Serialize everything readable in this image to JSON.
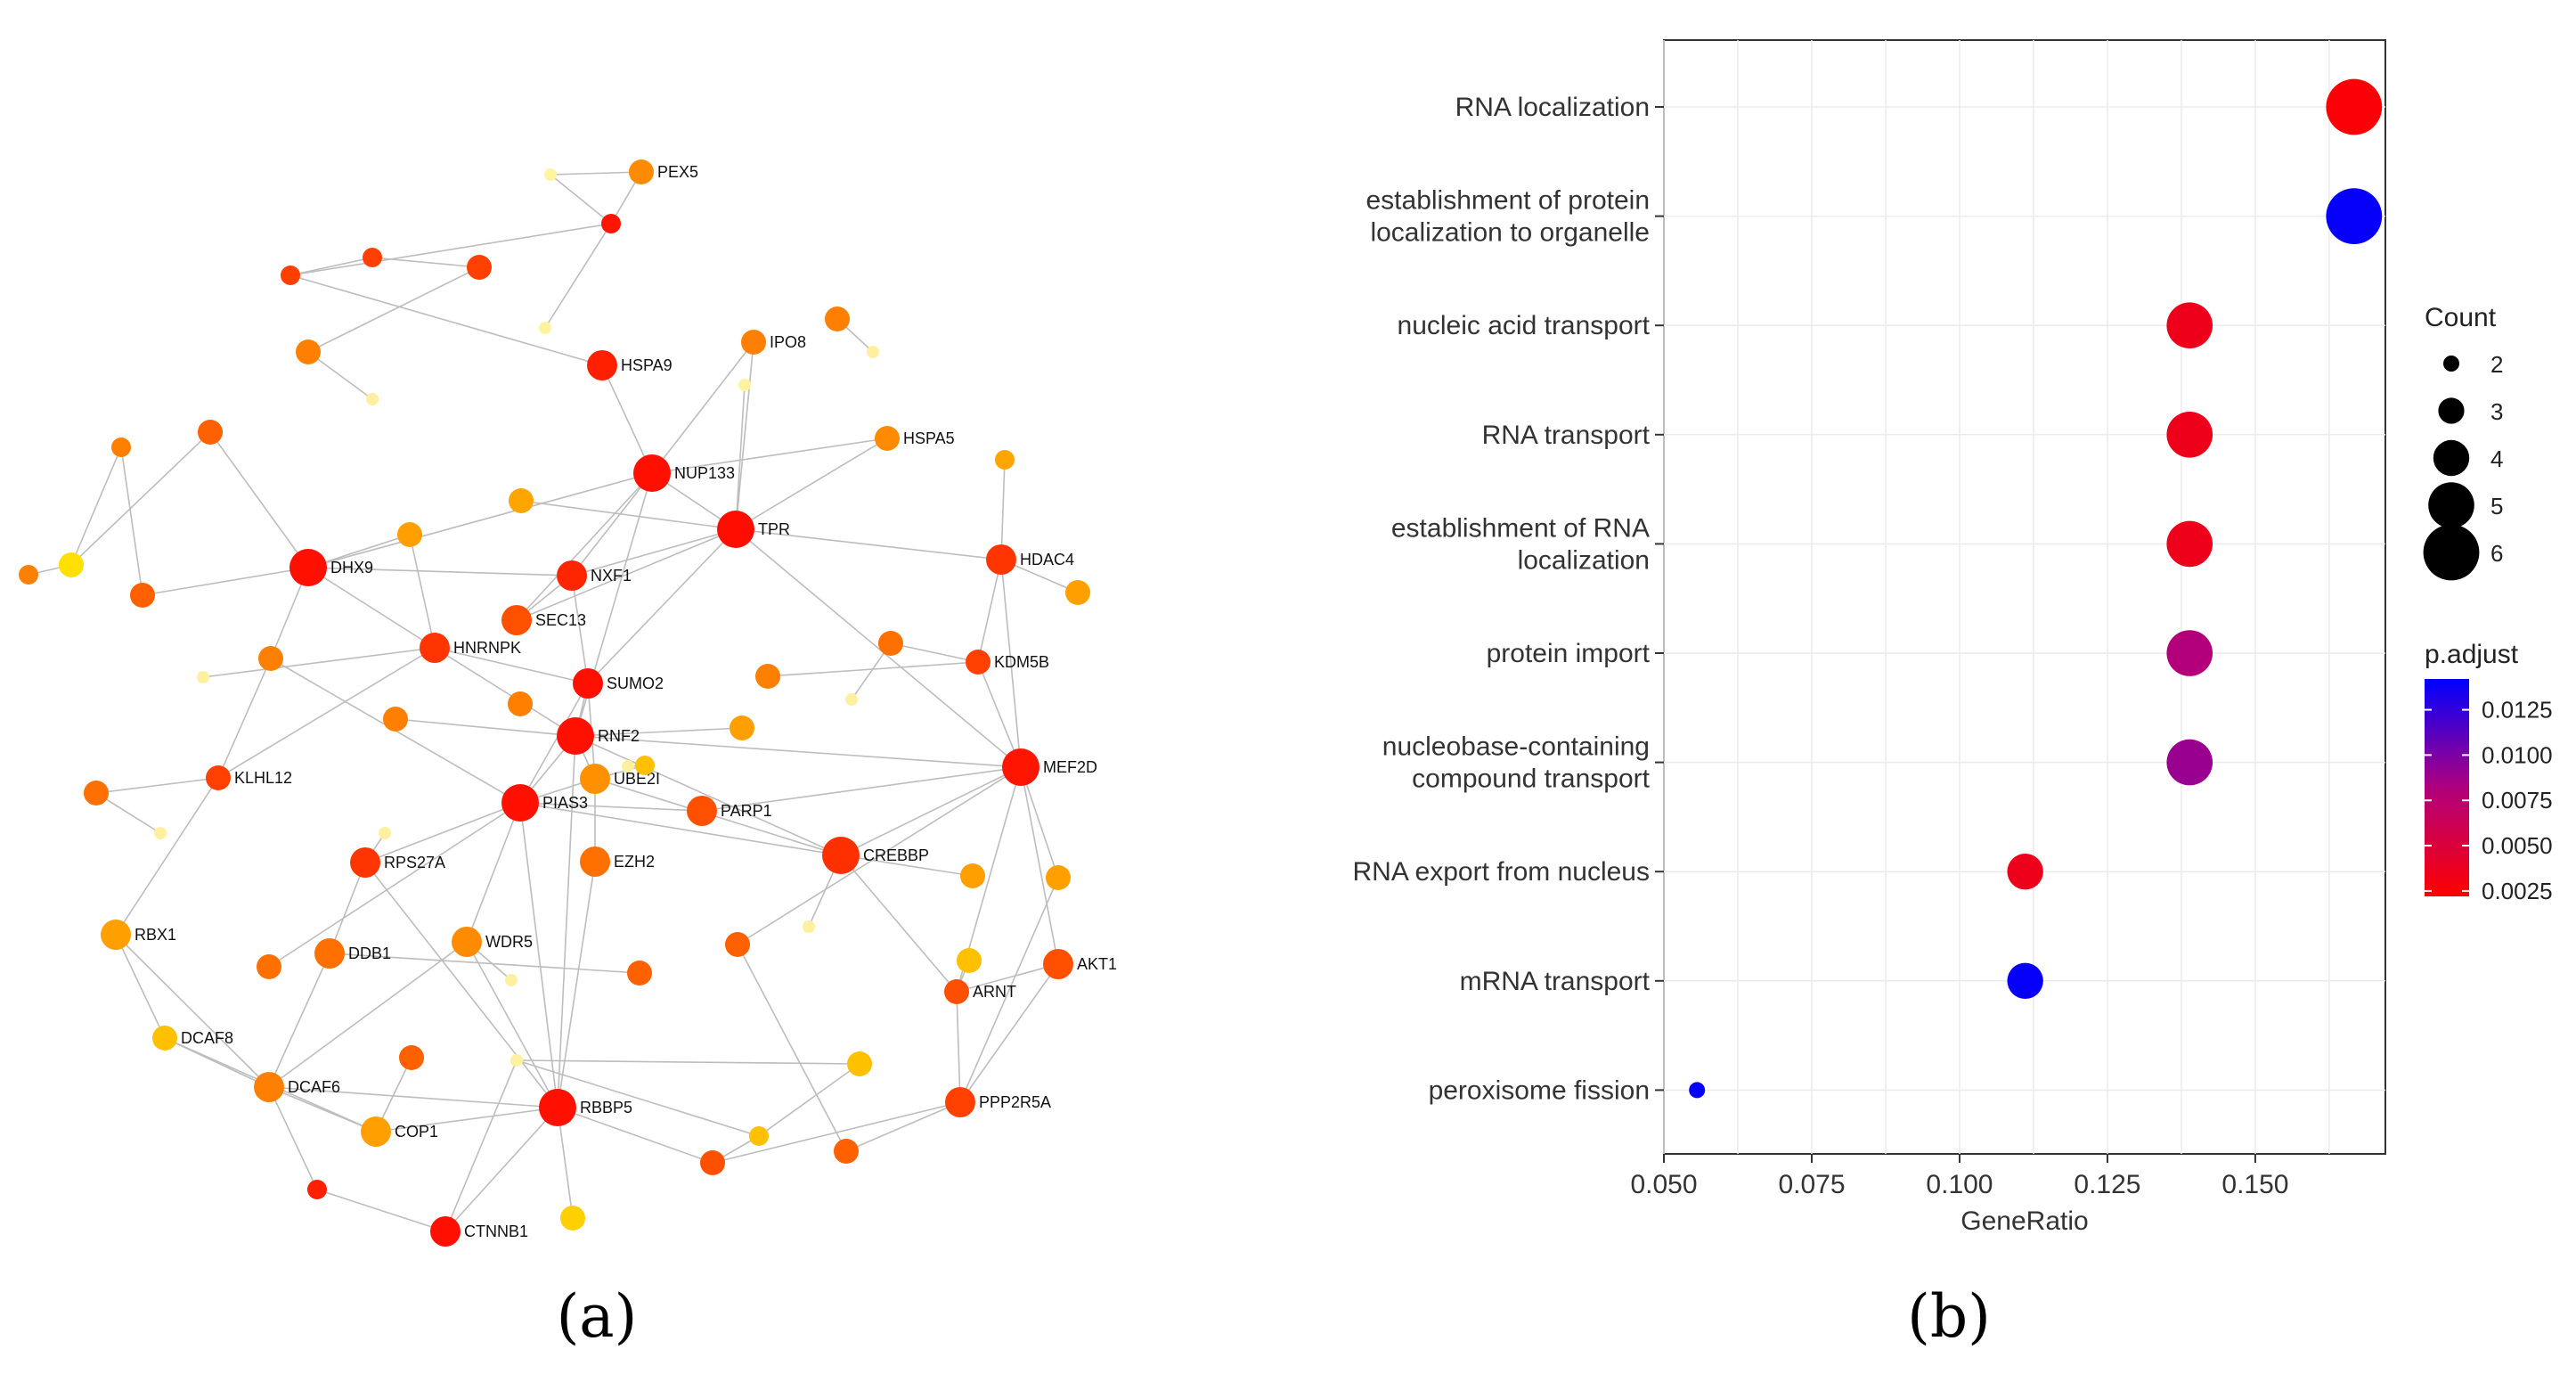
{
  "panel_labels": {
    "a": "(a)",
    "b": "(b)"
  },
  "network": {
    "nodes": [
      {
        "id": "PEX5",
        "label": "PEX5",
        "color": "#FF8C00",
        "size": "m"
      },
      {
        "id": "n_top1",
        "label": "",
        "color": "#FFF5A0",
        "size": "xs"
      },
      {
        "id": "n_top2",
        "label": "",
        "color": "#FF4000",
        "size": "s"
      },
      {
        "id": "n_top3",
        "label": "",
        "color": "#FF4000",
        "size": "m"
      },
      {
        "id": "n_top4",
        "label": "",
        "color": "#FF1500",
        "size": "s"
      },
      {
        "id": "n_top5",
        "label": "",
        "color": "#FF4000",
        "size": "s"
      },
      {
        "id": "n_top6",
        "label": "",
        "color": "#FFF3A0",
        "size": "xs"
      },
      {
        "id": "n_top7",
        "label": "",
        "color": "#FF8000",
        "size": "m"
      },
      {
        "id": "n_top8",
        "label": "",
        "color": "#FFF0A0",
        "size": "xs"
      },
      {
        "id": "HSPA9",
        "label": "HSPA9",
        "color": "#FF2000",
        "size": "l"
      },
      {
        "id": "IPO8",
        "label": "IPO8",
        "color": "#FF8000",
        "size": "m"
      },
      {
        "id": "n_ipo_a",
        "label": "",
        "color": "#FF8000",
        "size": "m"
      },
      {
        "id": "n_ipo_b",
        "label": "",
        "color": "#FFF3A0",
        "size": "xs"
      },
      {
        "id": "n_ipo_c",
        "label": "",
        "color": "#FFF0A0",
        "size": "xs"
      },
      {
        "id": "HSPA5",
        "label": "HSPA5",
        "color": "#FF8C00",
        "size": "m"
      },
      {
        "id": "n_hs5",
        "label": "",
        "color": "#FFA500",
        "size": "s"
      },
      {
        "id": "NUP133",
        "label": "NUP133",
        "color": "#FF1000",
        "size": "xl"
      },
      {
        "id": "TPR",
        "label": "TPR",
        "color": "#FF0D00",
        "size": "xl"
      },
      {
        "id": "HDAC4",
        "label": "HDAC4",
        "color": "#FF3500",
        "size": "l"
      },
      {
        "id": "n_hd",
        "label": "",
        "color": "#FFA000",
        "size": "m"
      },
      {
        "id": "DHX9",
        "label": "DHX9",
        "color": "#FF1000",
        "size": "xl"
      },
      {
        "id": "n_l1",
        "label": "",
        "color": "#FF8000",
        "size": "s"
      },
      {
        "id": "n_l2",
        "label": "",
        "color": "#FF6000",
        "size": "m"
      },
      {
        "id": "n_l3",
        "label": "",
        "color": "#FFE000",
        "size": "m"
      },
      {
        "id": "n_l4",
        "label": "",
        "color": "#FF8000",
        "size": "s"
      },
      {
        "id": "n_l5",
        "label": "",
        "color": "#FF6000",
        "size": "m"
      },
      {
        "id": "n_m1",
        "label": "",
        "color": "#FFA000",
        "size": "m"
      },
      {
        "id": "n_m2",
        "label": "",
        "color": "#FFA500",
        "size": "m"
      },
      {
        "id": "NXF1",
        "label": "NXF1",
        "color": "#FF2500",
        "size": "l"
      },
      {
        "id": "SEC13",
        "label": "SEC13",
        "color": "#FF5000",
        "size": "l"
      },
      {
        "id": "HNRNPK",
        "label": "HNRNPK",
        "color": "#FF3500",
        "size": "l"
      },
      {
        "id": "n_l6",
        "label": "",
        "color": "#FF8000",
        "size": "m"
      },
      {
        "id": "n_l7",
        "label": "",
        "color": "#FFF0A0",
        "size": "xs"
      },
      {
        "id": "SUMO2",
        "label": "SUMO2",
        "color": "#FF1000",
        "size": "l"
      },
      {
        "id": "n_s1",
        "label": "",
        "color": "#FF8000",
        "size": "m"
      },
      {
        "id": "n_s2",
        "label": "",
        "color": "#FF7000",
        "size": "m"
      },
      {
        "id": "n_s3",
        "label": "",
        "color": "#FF8000",
        "size": "m"
      },
      {
        "id": "n_s4",
        "label": "",
        "color": "#FFF0A0",
        "size": "xs"
      },
      {
        "id": "KDM5B",
        "label": "KDM5B",
        "color": "#FF4000",
        "size": "m"
      },
      {
        "id": "RNF2",
        "label": "RNF2",
        "color": "#FF1000",
        "size": "xl"
      },
      {
        "id": "n_r1",
        "label": "",
        "color": "#FF8000",
        "size": "m"
      },
      {
        "id": "n_r2",
        "label": "",
        "color": "#FFA000",
        "size": "m"
      },
      {
        "id": "UBE2I",
        "label": "UBE2I",
        "color": "#FF9000",
        "size": "l"
      },
      {
        "id": "n_ub",
        "label": "",
        "color": "#FFC000",
        "size": "s"
      },
      {
        "id": "n_ub2",
        "label": "",
        "color": "#FFF0A0",
        "size": "xs"
      },
      {
        "id": "MEF2D",
        "label": "MEF2D",
        "color": "#FF1500",
        "size": "xl"
      },
      {
        "id": "KLHL12",
        "label": "KLHL12",
        "color": "#FF4000",
        "size": "m"
      },
      {
        "id": "n_k1",
        "label": "",
        "color": "#FF7000",
        "size": "m"
      },
      {
        "id": "n_k2",
        "label": "",
        "color": "#FFF0A0",
        "size": "xs"
      },
      {
        "id": "PIAS3",
        "label": "PIAS3",
        "color": "#FF1000",
        "size": "xl"
      },
      {
        "id": "PARP1",
        "label": "PARP1",
        "color": "#FF5000",
        "size": "l"
      },
      {
        "id": "n_p1",
        "label": "",
        "color": "#FFF0A0",
        "size": "xs"
      },
      {
        "id": "RPS27A",
        "label": "RPS27A",
        "color": "#FF3500",
        "size": "l"
      },
      {
        "id": "EZH2",
        "label": "EZH2",
        "color": "#FF7000",
        "size": "l"
      },
      {
        "id": "CREBBP",
        "label": "CREBBP",
        "color": "#FF3000",
        "size": "xl"
      },
      {
        "id": "n_c1",
        "label": "",
        "color": "#FFA000",
        "size": "m"
      },
      {
        "id": "n_c2",
        "label": "",
        "color": "#FFA000",
        "size": "m"
      },
      {
        "id": "n_c3",
        "label": "",
        "color": "#FFC000",
        "size": "m"
      },
      {
        "id": "RBX1",
        "label": "RBX1",
        "color": "#FFA000",
        "size": "l"
      },
      {
        "id": "WDR5",
        "label": "WDR5",
        "color": "#FF8C00",
        "size": "l"
      },
      {
        "id": "DDB1",
        "label": "DDB1",
        "color": "#FF7000",
        "size": "l"
      },
      {
        "id": "n_d1",
        "label": "",
        "color": "#FF7000",
        "size": "m"
      },
      {
        "id": "n_d2",
        "label": "",
        "color": "#FFF0A0",
        "size": "xs"
      },
      {
        "id": "n_d3",
        "label": "",
        "color": "#FF6000",
        "size": "m"
      },
      {
        "id": "n_d4",
        "label": "",
        "color": "#FF6000",
        "size": "m"
      },
      {
        "id": "ARNT",
        "label": "ARNT",
        "color": "#FF5000",
        "size": "m"
      },
      {
        "id": "AKT1",
        "label": "AKT1",
        "color": "#FF5000",
        "size": "l"
      },
      {
        "id": "DCAF8",
        "label": "DCAF8",
        "color": "#FFC000",
        "size": "m"
      },
      {
        "id": "DCAF6",
        "label": "DCAF6",
        "color": "#FF8000",
        "size": "l"
      },
      {
        "id": "n_w1",
        "label": "",
        "color": "#FF6000",
        "size": "m"
      },
      {
        "id": "n_w2",
        "label": "",
        "color": "#FFF0A0",
        "size": "xs"
      },
      {
        "id": "n_w3",
        "label": "",
        "color": "#FFF0A0",
        "size": "xs"
      },
      {
        "id": "n_w4",
        "label": "",
        "color": "#FFC000",
        "size": "m"
      },
      {
        "id": "RBBP5",
        "label": "RBBP5",
        "color": "#FF1000",
        "size": "xl"
      },
      {
        "id": "COP1",
        "label": "COP1",
        "color": "#FFA000",
        "size": "l"
      },
      {
        "id": "PPP2R5A",
        "label": "PPP2R5A",
        "color": "#FF4000",
        "size": "l"
      },
      {
        "id": "n_b1",
        "label": "",
        "color": "#FF2000",
        "size": "s"
      },
      {
        "id": "n_b2",
        "label": "",
        "color": "#FFC000",
        "size": "s"
      },
      {
        "id": "n_b3",
        "label": "",
        "color": "#FF5000",
        "size": "m"
      },
      {
        "id": "n_b4",
        "label": "",
        "color": "#FF6000",
        "size": "m"
      },
      {
        "id": "CTNNB1",
        "label": "CTNNB1",
        "color": "#FF1000",
        "size": "l"
      },
      {
        "id": "n_b5",
        "label": "",
        "color": "#FFD000",
        "size": "m"
      }
    ],
    "edges": [
      [
        "n_top1",
        "PEX5"
      ],
      [
        "PEX5",
        "n_top4"
      ],
      [
        "n_top4",
        "n_top1"
      ],
      [
        "n_top4",
        "n_top5"
      ],
      [
        "n_top5",
        "n_top2"
      ],
      [
        "n_top2",
        "n_top3"
      ],
      [
        "n_top4",
        "n_top6"
      ],
      [
        "n_top3",
        "n_top7"
      ],
      [
        "n_top7",
        "n_top8"
      ],
      [
        "n_top5",
        "HSPA9"
      ],
      [
        "HSPA9",
        "NUP133"
      ],
      [
        "NUP133",
        "IPO8"
      ],
      [
        "IPO8",
        "TPR"
      ],
      [
        "n_ipo_a",
        "n_ipo_c"
      ],
      [
        "n_ipo_b",
        "TPR"
      ],
      [
        "NUP133",
        "HSPA5"
      ],
      [
        "HSPA5",
        "TPR"
      ],
      [
        "n_hs5",
        "HDAC4"
      ],
      [
        "TPR",
        "HDAC4"
      ],
      [
        "HDAC4",
        "n_hd"
      ],
      [
        "NUP133",
        "TPR"
      ],
      [
        "NUP133",
        "NXF1"
      ],
      [
        "NUP133",
        "SEC13"
      ],
      [
        "NUP133",
        "RNF2"
      ],
      [
        "NUP133",
        "DHX9"
      ],
      [
        "DHX9",
        "n_l2"
      ],
      [
        "n_l2",
        "n_l3"
      ],
      [
        "n_l3",
        "n_l4"
      ],
      [
        "n_l3",
        "n_l1"
      ],
      [
        "n_l1",
        "n_l5"
      ],
      [
        "DHX9",
        "n_l5"
      ],
      [
        "DHX9",
        "NXF1"
      ],
      [
        "DHX9",
        "HNRNPK"
      ],
      [
        "DHX9",
        "n_l6"
      ],
      [
        "DHX9",
        "n_m1"
      ],
      [
        "n_m1",
        "HNRNPK"
      ],
      [
        "n_m2",
        "TPR"
      ],
      [
        "TPR",
        "NXF1"
      ],
      [
        "TPR",
        "SEC13"
      ],
      [
        "TPR",
        "SUMO2"
      ],
      [
        "TPR",
        "MEF2D"
      ],
      [
        "HNRNPK",
        "SUMO2"
      ],
      [
        "HNRNPK",
        "RNF2"
      ],
      [
        "HNRNPK",
        "n_l7"
      ],
      [
        "SUMO2",
        "RNF2"
      ],
      [
        "SUMO2",
        "PIAS3"
      ],
      [
        "SUMO2",
        "UBE2I"
      ],
      [
        "n_s1",
        "KDM5B"
      ],
      [
        "n_s2",
        "KDM5B"
      ],
      [
        "n_s2",
        "n_s4"
      ],
      [
        "KDM5B",
        "HDAC4"
      ],
      [
        "KDM5B",
        "MEF2D"
      ],
      [
        "HDAC4",
        "MEF2D"
      ],
      [
        "RNF2",
        "n_r1"
      ],
      [
        "RNF2",
        "n_r2"
      ],
      [
        "RNF2",
        "MEF2D"
      ],
      [
        "RNF2",
        "UBE2I"
      ],
      [
        "RNF2",
        "PIAS3"
      ],
      [
        "RNF2",
        "RBBP5"
      ],
      [
        "RNF2",
        "CREBBP"
      ],
      [
        "UBE2I",
        "PIAS3"
      ],
      [
        "UBE2I",
        "EZH2"
      ],
      [
        "UBE2I",
        "CREBBP"
      ],
      [
        "UBE2I",
        "n_ub"
      ],
      [
        "n_ub",
        "n_ub2"
      ],
      [
        "PIAS3",
        "PARP1"
      ],
      [
        "PIAS3",
        "CREBBP"
      ],
      [
        "PIAS3",
        "RPS27A"
      ],
      [
        "PIAS3",
        "RBBP5"
      ],
      [
        "PIAS3",
        "WDR5"
      ],
      [
        "PIAS3",
        "n_d1"
      ],
      [
        "n_l6",
        "PIAS3"
      ],
      [
        "n_k1",
        "KLHL12"
      ],
      [
        "KLHL12",
        "HNRNPK"
      ],
      [
        "KLHL12",
        "RBX1"
      ],
      [
        "n_k1",
        "n_k2"
      ],
      [
        "PARP1",
        "MEF2D"
      ],
      [
        "CREBBP",
        "MEF2D"
      ],
      [
        "CREBBP",
        "n_c1"
      ],
      [
        "CREBBP",
        "ARNT"
      ],
      [
        "CREBBP",
        "n_p1"
      ],
      [
        "MEF2D",
        "n_c2"
      ],
      [
        "MEF2D",
        "AKT1"
      ],
      [
        "MEF2D",
        "ARNT"
      ],
      [
        "MEF2D",
        "n_d4"
      ],
      [
        "n_c2",
        "PPP2R5A"
      ],
      [
        "n_c3",
        "ARNT"
      ],
      [
        "ARNT",
        "AKT1"
      ],
      [
        "ARNT",
        "PPP2R5A"
      ],
      [
        "AKT1",
        "PPP2R5A"
      ],
      [
        "RPS27A",
        "RBBP5"
      ],
      [
        "RPS27A",
        "DDB1"
      ],
      [
        "RPS27A",
        "n_d2"
      ],
      [
        "RBX1",
        "DCAF8"
      ],
      [
        "RBX1",
        "DCAF6"
      ],
      [
        "DDB1",
        "DCAF6"
      ],
      [
        "DDB1",
        "n_d3"
      ],
      [
        "DCAF8",
        "DCAF6"
      ],
      [
        "DCAF8",
        "COP1"
      ],
      [
        "DCAF6",
        "COP1"
      ],
      [
        "DCAF6",
        "WDR5"
      ],
      [
        "DCAF6",
        "RBBP5"
      ],
      [
        "WDR5",
        "RBBP5"
      ],
      [
        "WDR5",
        "n_w2"
      ],
      [
        "n_w1",
        "COP1"
      ],
      [
        "COP1",
        "RBBP5"
      ],
      [
        "RBBP5",
        "EZH2"
      ],
      [
        "RBBP5",
        "n_b5"
      ],
      [
        "RBBP5",
        "n_b3"
      ],
      [
        "RBBP5",
        "CTNNB1"
      ],
      [
        "n_w3",
        "CTNNB1"
      ],
      [
        "n_w3",
        "n_w4"
      ],
      [
        "DCAF6",
        "n_b1"
      ],
      [
        "n_b1",
        "CTNNB1"
      ],
      [
        "n_b2",
        "n_b3"
      ],
      [
        "n_b2",
        "n_w4"
      ],
      [
        "n_b3",
        "PPP2R5A"
      ],
      [
        "n_b4",
        "PPP2R5A"
      ],
      [
        "n_b4",
        "n_d4"
      ],
      [
        "n_b2",
        "n_w3"
      ],
      [
        "KLHL12",
        "n_l6"
      ],
      [
        "SEC13",
        "NXF1"
      ],
      [
        "NXF1",
        "SUMO2"
      ]
    ]
  },
  "chart_data": {
    "type": "scatter",
    "subtype": "dotplot",
    "title": "",
    "xlabel": "GeneRatio",
    "ylabel": "",
    "xlim": [
      0.05,
      0.172
    ],
    "xticks": [
      0.05,
      0.075,
      0.1,
      0.125,
      0.15
    ],
    "xtick_labels": [
      "0.050",
      "0.075",
      "0.100",
      "0.125",
      "0.150"
    ],
    "grid": true,
    "categories": [
      [
        "RNA localization"
      ],
      [
        "establishment of protein",
        "localization to organelle"
      ],
      [
        "nucleic acid transport"
      ],
      [
        "RNA transport"
      ],
      [
        "establishment of RNA",
        "localization"
      ],
      [
        "protein import"
      ],
      [
        "nucleobase-containing",
        "compound transport"
      ],
      [
        "RNA export from nucleus"
      ],
      [
        "mRNA transport"
      ],
      [
        "peroxisome fission"
      ]
    ],
    "points": [
      {
        "gene_ratio": 0.1667,
        "count": 6,
        "p_adjust": 0.0025
      },
      {
        "gene_ratio": 0.1667,
        "count": 6,
        "p_adjust": 0.014
      },
      {
        "gene_ratio": 0.1389,
        "count": 5,
        "p_adjust": 0.0035
      },
      {
        "gene_ratio": 0.1389,
        "count": 5,
        "p_adjust": 0.0035
      },
      {
        "gene_ratio": 0.1389,
        "count": 5,
        "p_adjust": 0.0035
      },
      {
        "gene_ratio": 0.1389,
        "count": 5,
        "p_adjust": 0.008
      },
      {
        "gene_ratio": 0.1389,
        "count": 5,
        "p_adjust": 0.009
      },
      {
        "gene_ratio": 0.1111,
        "count": 4,
        "p_adjust": 0.0035
      },
      {
        "gene_ratio": 0.1111,
        "count": 4,
        "p_adjust": 0.014
      },
      {
        "gene_ratio": 0.0556,
        "count": 2,
        "p_adjust": 0.014
      }
    ],
    "size_legend": {
      "title": "Count",
      "values": [
        2,
        3,
        4,
        5,
        6
      ],
      "labels": [
        "2",
        "3",
        "4",
        "5",
        "6"
      ]
    },
    "color_legend": {
      "title": "p.adjust",
      "range": [
        0.0022,
        0.0142
      ],
      "ticks": [
        0.0025,
        0.005,
        0.0075,
        0.01,
        0.0125
      ],
      "tick_labels": [
        "0.0025",
        "0.0050",
        "0.0075",
        "0.0100",
        "0.0125"
      ],
      "low_color": "#FF0000",
      "high_color": "#0000FF"
    }
  }
}
